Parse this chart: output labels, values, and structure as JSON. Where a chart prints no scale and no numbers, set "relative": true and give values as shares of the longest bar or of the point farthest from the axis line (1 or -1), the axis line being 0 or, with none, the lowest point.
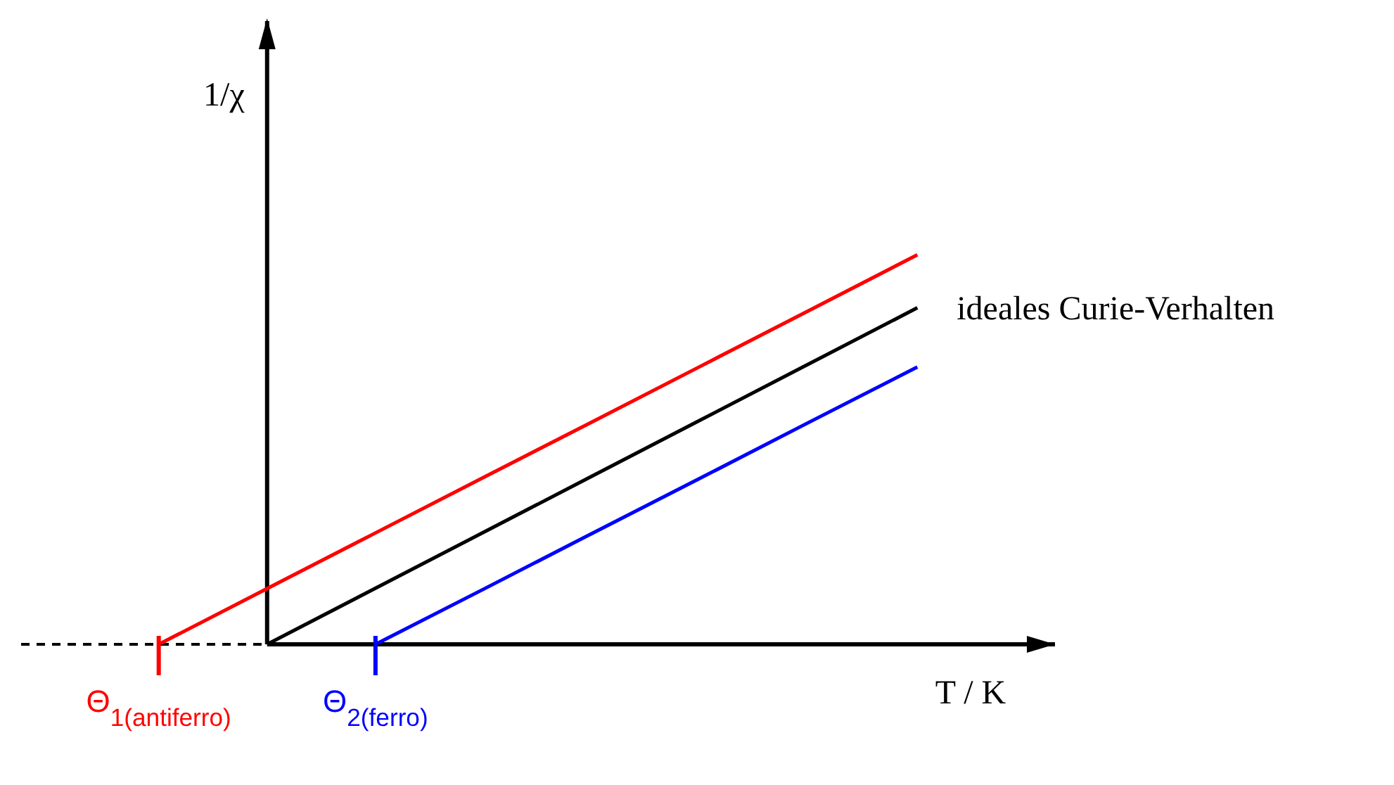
{
  "chart_data": {
    "type": "line",
    "relative": true,
    "xlabel": "T / K",
    "ylabel": "1/χ",
    "tick_labels": "x",
    "categories": [
      "Θ$_{1(antiferro)}$",
      null,
      "Θ$_{2(ferro)}$",
      null,
      null,
      null,
      null,
      null
    ],
    "series": [
      {
        "color": "#ff0000",
        "values": [
          0,
          0.143,
          0.286,
          0.429,
          0.571,
          0.714,
          0.857,
          1
        ]
      },
      {
        "name": "ideales Curie-Verhalten",
        "color": "#000000",
        "values": [
          null,
          0,
          0.144,
          0.288,
          0.432,
          0.576,
          0.72,
          0.864
        ]
      },
      {
        "color": "#0000ff",
        "values": [
          null,
          null,
          0,
          0.142,
          0.285,
          0.427,
          0.57,
          0.712
        ]
      }
    ]
  }
}
